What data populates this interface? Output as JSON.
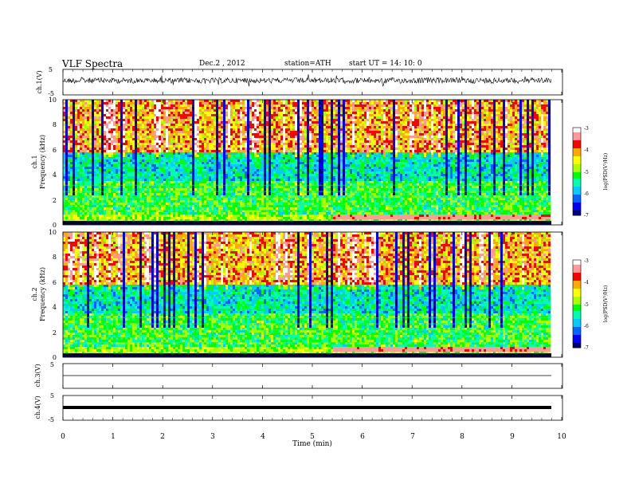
{
  "header": {
    "title": "VLF  Spectra",
    "date": "Dec.2 , 2012",
    "station": "station=ATH",
    "start": "start  UT  =   14: 10: 0"
  },
  "chart_data": [
    {
      "type": "line",
      "panel": "ch1-waveform",
      "ylabel": "ch.1(V)",
      "ylim": [
        -5,
        5
      ],
      "ytick_labels": [
        "5",
        "-5"
      ],
      "x_range_min": [
        0,
        9.8
      ],
      "trace": "dense noisy waveform centered near 0 V, amplitude about +/-1 V with sparse spikes"
    },
    {
      "type": "heatmap",
      "panel": "ch1-spectrogram",
      "ylabel": "ch.1\nFrequency (kHz)",
      "ylim_khz": [
        0,
        10
      ],
      "ytick_labels": [
        "0",
        "2",
        "4",
        "6",
        "8",
        "10"
      ],
      "x_range_min": [
        0,
        9.8
      ],
      "colorbar": {
        "label": "log(PSD(V²/Hz)",
        "range": [
          -7,
          -3
        ],
        "tick_labels": [
          "-3",
          "-4",
          "-5",
          "-6",
          "-7"
        ]
      }
    },
    {
      "type": "heatmap",
      "panel": "ch2-spectrogram",
      "ylabel": "ch.2\nFrequency (kHz)",
      "ylim_khz": [
        0,
        10
      ],
      "ytick_labels": [
        "0",
        "2",
        "4",
        "6",
        "8",
        "10"
      ],
      "x_range_min": [
        0,
        9.8
      ],
      "colorbar": {
        "label": "log(PSD(V²/Hz)",
        "range": [
          -7,
          -3
        ],
        "tick_labels": [
          "-3",
          "-4",
          "-5",
          "-6",
          "-7"
        ]
      }
    },
    {
      "type": "line",
      "panel": "ch3-waveform",
      "ylabel": "ch.3(V)",
      "ylim": [
        -5,
        5
      ],
      "ytick_labels": [
        "5"
      ],
      "trace": "flat line near 0 V"
    },
    {
      "type": "line",
      "panel": "ch4-waveform",
      "ylabel": "ch.4(V)",
      "ylim": [
        -5,
        5
      ],
      "ytick_labels": [
        "5",
        "-5"
      ],
      "trace": "thick flat band near 0 V"
    }
  ],
  "xaxis": {
    "label": "Time  (min)",
    "xlim": [
      0,
      10
    ],
    "tick_labels": [
      "0",
      "1",
      "2",
      "3",
      "4",
      "5",
      "6",
      "7",
      "8",
      "9",
      "10"
    ]
  },
  "colors": {
    "colormap": [
      "#00007a",
      "#0000ff",
      "#0066ff",
      "#00ccff",
      "#00ffaa",
      "#00ff00",
      "#aaff00",
      "#ffff00",
      "#ffaa00",
      "#ff0000",
      "#ff9a9a",
      "#ffffff"
    ],
    "trace": "#000000"
  }
}
